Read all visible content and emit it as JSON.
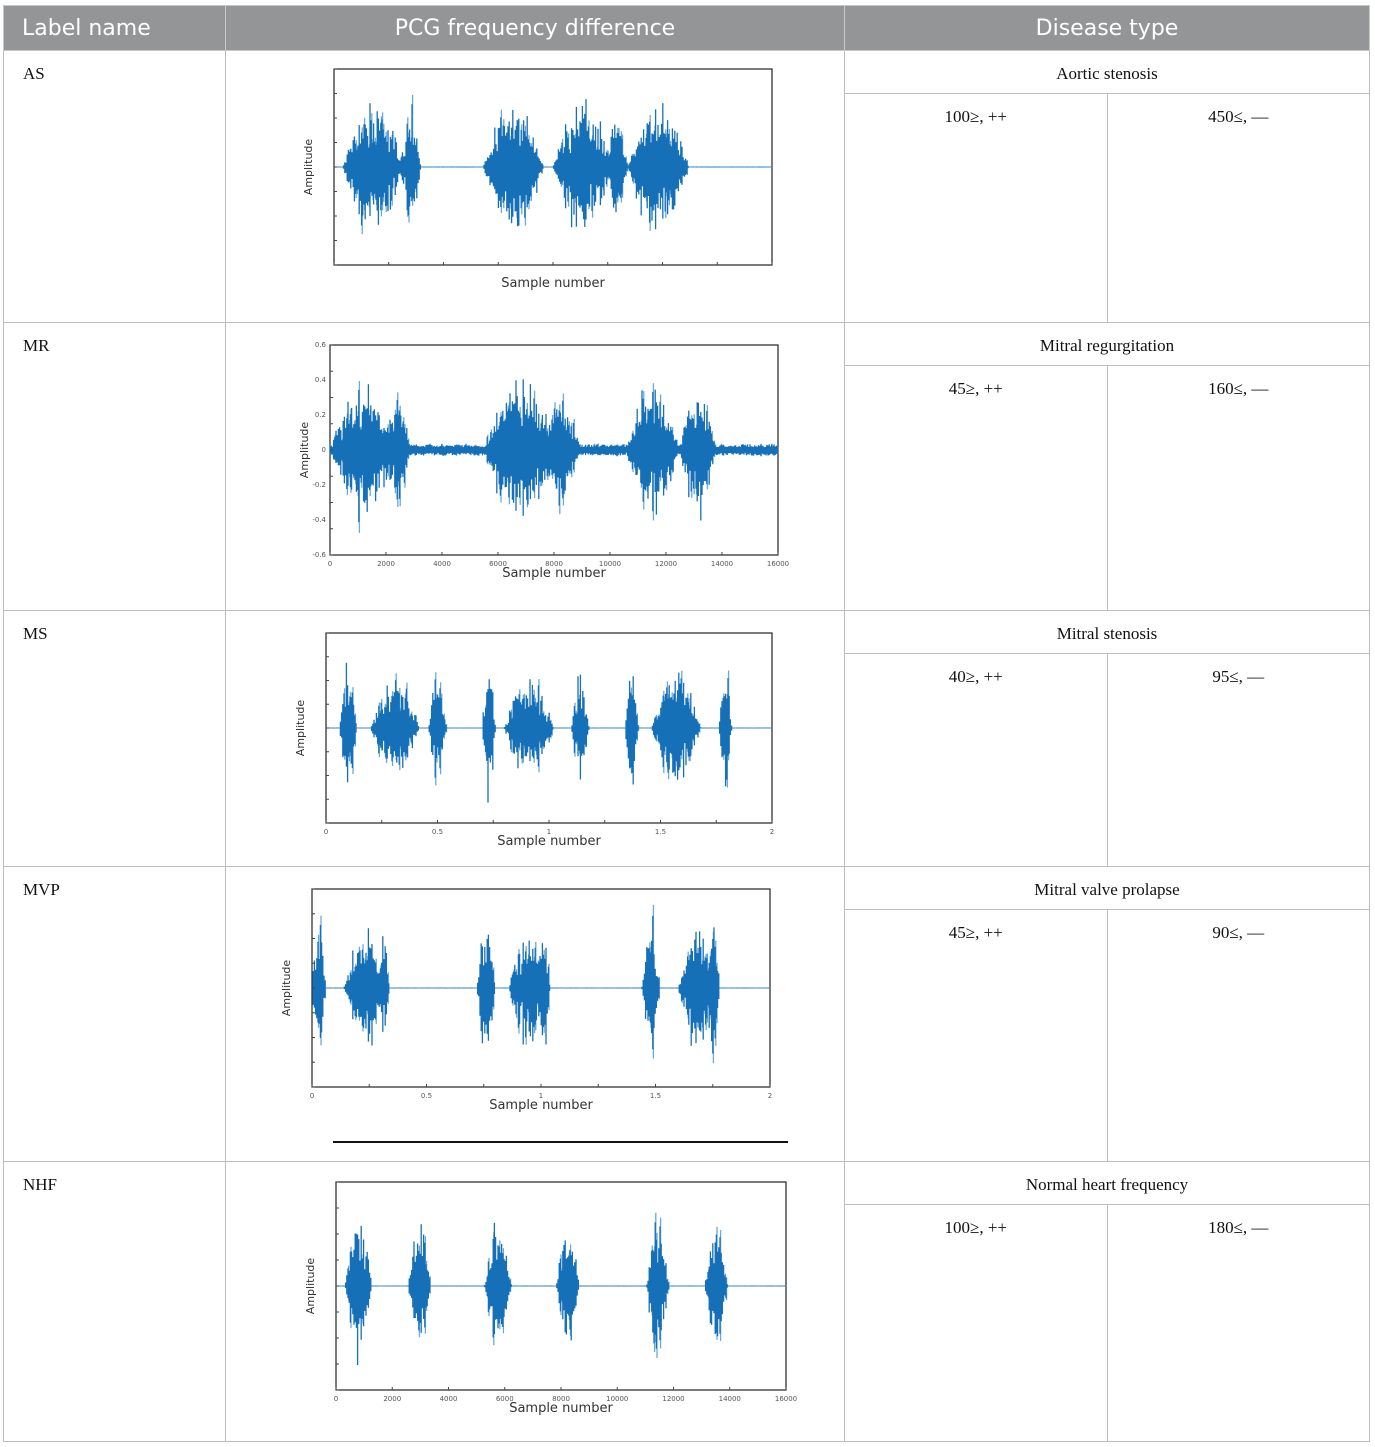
{
  "headers": {
    "label": "Label name",
    "pcg": "PCG frequency difference",
    "disease": "Disease type"
  },
  "rows": [
    {
      "label": "AS",
      "disease": "Aortic stenosis",
      "low": "100≥, ++",
      "high": "450≤, ––",
      "plot": {
        "ylabel": "Amplitude",
        "xlabel": "Sample number",
        "waveform": "three heart cycles, dense wide murmur bursts"
      }
    },
    {
      "label": "MR",
      "disease": "Mitral regurgitation",
      "low": "45≥, ++",
      "high": "160≤, ––",
      "plot": {
        "ylabel": "Amplitude",
        "xlabel": "Sample number",
        "xticks": [
          "0",
          "2000",
          "4000",
          "6000",
          "8000",
          "10000",
          "12000",
          "14000",
          "16000"
        ],
        "yticks": [
          "0.6",
          "0.4",
          "0.2",
          "0",
          "-0.2",
          "-0.4",
          "-0.6"
        ]
      }
    },
    {
      "label": "MS",
      "disease": "Mitral stenosis",
      "low": "40≥, ++",
      "high": "95≤, ––",
      "plot": {
        "ylabel": "Amplitude",
        "xlabel": "Sample number",
        "xticks": [
          "0",
          "0.5",
          "1",
          "1.5",
          "2"
        ]
      }
    },
    {
      "label": "MVP",
      "disease": "Mitral valve prolapse",
      "low": "45≥, ++",
      "high": "90≤, ––",
      "plot": {
        "ylabel": "Amplitude",
        "xlabel": "Sample number",
        "xticks": [
          "0",
          "0.5",
          "1",
          "1.5",
          "2"
        ]
      }
    },
    {
      "label": "NHF",
      "disease": "Normal heart frequency",
      "low": "100≥, ++",
      "high": "180≤, ––",
      "plot": {
        "ylabel": "Amplitude",
        "xlabel": "Sample number",
        "xticks": [
          "0",
          "2000",
          "4000",
          "6000",
          "8000",
          "10000",
          "12000",
          "14000",
          "16000"
        ]
      }
    }
  ],
  "colors": {
    "header_bg": "#939597",
    "waveform": "#1670b8",
    "waveform_light": "#6aa9dc"
  }
}
